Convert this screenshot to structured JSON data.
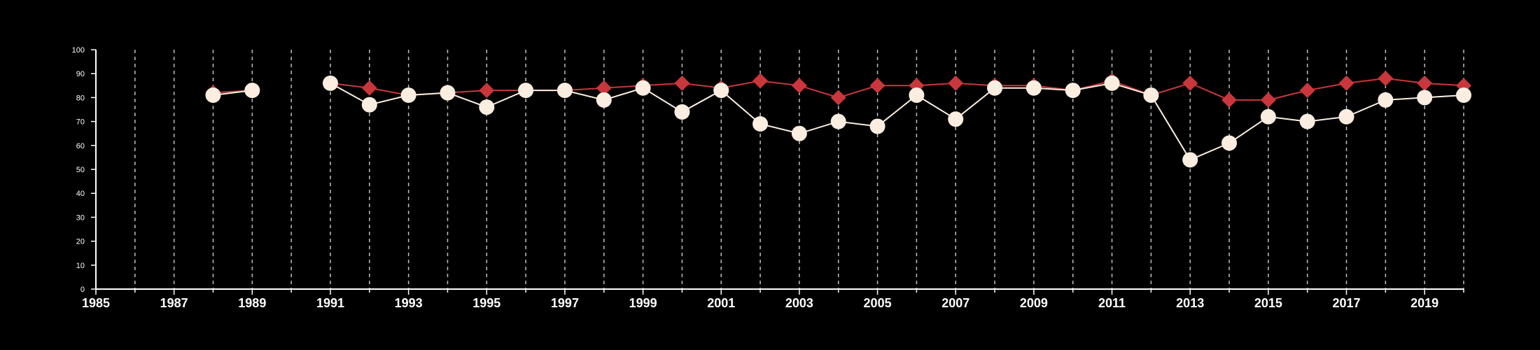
{
  "chart_data": {
    "type": "line",
    "x_range": [
      1985,
      2020
    ],
    "ylim": [
      0,
      100
    ],
    "y_ticks": [
      0,
      10,
      20,
      30,
      40,
      50,
      60,
      70,
      80,
      90,
      100
    ],
    "x_tick_labels": [
      1985,
      1987,
      1989,
      1991,
      1993,
      1995,
      1997,
      1999,
      2001,
      2003,
      2005,
      2007,
      2009,
      2011,
      2013,
      2015,
      2017,
      2019
    ],
    "grid": "vertical dashed lines at every year",
    "legend": "none",
    "series": [
      {
        "marker": "diamond",
        "color": "#c9373c",
        "points": [
          [
            1988,
            82
          ],
          [
            1989,
            83
          ],
          [
            1991,
            86
          ],
          [
            1992,
            84
          ],
          [
            1993,
            81
          ],
          [
            1994,
            82
          ],
          [
            1995,
            83
          ],
          [
            1996,
            83
          ],
          [
            1997,
            83
          ],
          [
            1998,
            84
          ],
          [
            1999,
            85
          ],
          [
            2000,
            86
          ],
          [
            2001,
            84
          ],
          [
            2002,
            87
          ],
          [
            2003,
            85
          ],
          [
            2004,
            80
          ],
          [
            2005,
            85
          ],
          [
            2006,
            85
          ],
          [
            2007,
            86
          ],
          [
            2008,
            85
          ],
          [
            2009,
            85
          ],
          [
            2010,
            83
          ],
          [
            2011,
            87
          ],
          [
            2012,
            81
          ],
          [
            2013,
            86
          ],
          [
            2014,
            79
          ],
          [
            2015,
            79
          ],
          [
            2016,
            83
          ],
          [
            2017,
            86
          ],
          [
            2018,
            88
          ],
          [
            2019,
            86
          ],
          [
            2020,
            85
          ]
        ]
      },
      {
        "marker": "circle",
        "color": "#fbeee0",
        "points": [
          [
            1988,
            81
          ],
          [
            1989,
            83
          ],
          [
            1991,
            86
          ],
          [
            1992,
            77
          ],
          [
            1993,
            81
          ],
          [
            1994,
            82
          ],
          [
            1995,
            76
          ],
          [
            1996,
            83
          ],
          [
            1997,
            83
          ],
          [
            1998,
            79
          ],
          [
            1999,
            84
          ],
          [
            2000,
            74
          ],
          [
            2001,
            83
          ],
          [
            2002,
            69
          ],
          [
            2003,
            65
          ],
          [
            2004,
            70
          ],
          [
            2005,
            68
          ],
          [
            2006,
            81
          ],
          [
            2007,
            71
          ],
          [
            2008,
            84
          ],
          [
            2009,
            84
          ],
          [
            2010,
            83
          ],
          [
            2011,
            86
          ],
          [
            2012,
            81
          ],
          [
            2013,
            54
          ],
          [
            2014,
            61
          ],
          [
            2015,
            72
          ],
          [
            2016,
            70
          ],
          [
            2017,
            72
          ],
          [
            2018,
            79
          ],
          [
            2019,
            80
          ],
          [
            2020,
            81
          ]
        ]
      }
    ]
  }
}
